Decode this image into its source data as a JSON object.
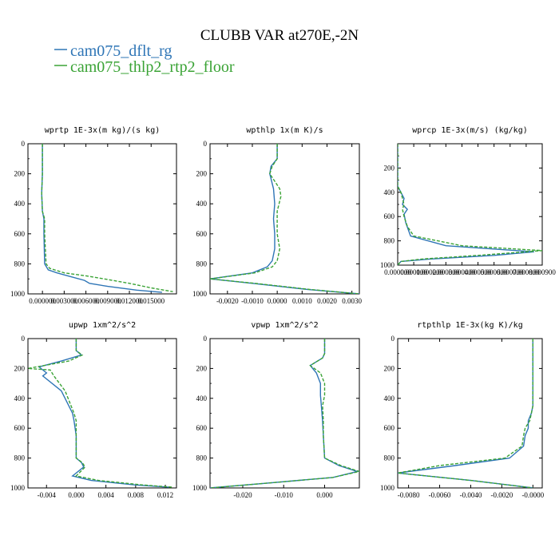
{
  "title": "CLUBB VAR at270E,-2N",
  "legend": [
    {
      "label": "cam075_dflt_rg",
      "color": "#2e75b6"
    },
    {
      "label": "cam075_thlp2_rtp2_floor",
      "color": "#3aa335"
    }
  ],
  "chart_data": [
    {
      "type": "line",
      "title": "wprtp  1E-3x(m kg)/(s kg)",
      "xlim": [
        -0.002,
        0.0185
      ],
      "ylim": [
        1000,
        0
      ],
      "xticks": [
        0.0,
        0.003,
        0.006,
        0.009,
        0.012,
        0.015
      ],
      "xtick_labels": [
        "0.000000",
        "0.003000",
        "0.006000",
        "0.009000",
        "0.012000",
        "0.015000"
      ],
      "yticks": [
        0,
        200,
        400,
        600,
        800,
        1000
      ],
      "series": [
        {
          "name": "cam075_dflt_rg",
          "x": [
            0.0,
            0.0,
            -0.0001,
            0.0,
            0.0002,
            0.0002,
            0.0003,
            0.0008,
            0.002,
            0.0035,
            0.0058,
            0.0065,
            0.009,
            0.013,
            0.0165
          ],
          "y": [
            0,
            200,
            330,
            450,
            500,
            600,
            800,
            840,
            860,
            880,
            910,
            930,
            950,
            975,
            990
          ]
        },
        {
          "name": "cam075_thlp2_rtp2_floor",
          "x": [
            0.0,
            0.0,
            -0.0001,
            0.0,
            0.0003,
            0.0003,
            0.0005,
            0.001,
            0.003,
            0.006,
            0.0085,
            0.012,
            0.015,
            0.018
          ],
          "y": [
            0,
            200,
            330,
            450,
            500,
            600,
            800,
            830,
            860,
            880,
            900,
            930,
            960,
            985
          ]
        }
      ]
    },
    {
      "type": "line",
      "title": "wpthlp  1x(m K)/s",
      "xlim": [
        -0.0027,
        0.0033
      ],
      "ylim": [
        1000,
        0
      ],
      "xticks": [
        -0.002,
        -0.001,
        0.0,
        0.001,
        0.002,
        0.003
      ],
      "xtick_labels": [
        "-0.0020",
        "-0.0010",
        "0.0000",
        "0.0010",
        "0.0020",
        "0.0030"
      ],
      "yticks": [
        0,
        200,
        400,
        600,
        800,
        1000
      ],
      "series": [
        {
          "name": "cam075_dflt_rg",
          "x": [
            0.0,
            0.0,
            -0.00025,
            -0.0003,
            -0.00015,
            -0.0001,
            -0.00015,
            -0.0001,
            -0.0001,
            -0.0002,
            -0.0004,
            -0.001,
            -0.0027,
            -0.001,
            0.0012,
            0.0033
          ],
          "y": [
            0,
            100,
            150,
            200,
            300,
            400,
            500,
            600,
            700,
            780,
            820,
            860,
            900,
            930,
            970,
            1000
          ]
        },
        {
          "name": "cam075_thlp2_rtp2_floor",
          "x": [
            0.0,
            0.0,
            -0.0002,
            -0.0003,
            0.0001,
            0.00015,
            0.0,
            0.0,
            0.0001,
            0.0,
            -0.0002,
            -0.0009,
            -0.0027,
            -0.0009,
            0.0013,
            0.0033
          ],
          "y": [
            0,
            100,
            150,
            200,
            300,
            350,
            450,
            600,
            700,
            780,
            820,
            860,
            900,
            930,
            970,
            1000
          ]
        }
      ]
    },
    {
      "type": "line",
      "title": "wprcp  1E-3x(m/s) (kg/kg)",
      "xlim": [
        0.0,
        0.0009
      ],
      "ylim": [
        1000,
        0
      ],
      "xticks": [
        0.0,
        0.0001,
        0.0002,
        0.0003,
        0.0004,
        0.0005,
        0.0006,
        0.0007,
        0.0008,
        0.0009
      ],
      "xtick_labels": [
        "0.000000",
        "0.000100",
        "0.000200",
        "0.000300",
        "0.000400",
        "0.000500",
        "0.000600",
        "0.000700",
        "0.000800",
        "0.000900"
      ],
      "yticks": [
        200,
        400,
        600,
        800,
        1000
      ],
      "series": [
        {
          "name": "cam075_dflt_rg",
          "x": [
            0.0,
            0.0,
            2e-05,
            4e-05,
            3e-05,
            6e-05,
            4e-05,
            5e-05,
            8e-05,
            0.0003,
            0.00085,
            0.0006,
            0.0002,
            2e-05,
            0.0
          ],
          "y": [
            0,
            350,
            400,
            450,
            500,
            540,
            580,
            650,
            760,
            840,
            890,
            920,
            950,
            970,
            1000
          ]
        },
        {
          "name": "cam075_thlp2_rtp2_floor",
          "x": [
            0.0,
            0.0,
            2e-05,
            3e-05,
            4e-05,
            3e-05,
            4e-05,
            6e-05,
            0.0001,
            0.0004,
            0.0009,
            0.0005,
            0.00015,
            2e-05,
            0.0
          ],
          "y": [
            0,
            350,
            400,
            450,
            500,
            540,
            600,
            680,
            760,
            840,
            880,
            920,
            950,
            970,
            1000
          ]
        }
      ]
    },
    {
      "type": "line",
      "title": "upwp  1xm^2/s^2",
      "xlim": [
        -0.0065,
        0.0135
      ],
      "ylim": [
        1000,
        0
      ],
      "xticks": [
        -0.004,
        0.0,
        0.004,
        0.008,
        0.012
      ],
      "xtick_labels": [
        "-0.004",
        "0.000",
        "0.004",
        "0.008",
        "0.012"
      ],
      "yticks": [
        0,
        200,
        400,
        600,
        800,
        1000
      ],
      "series": [
        {
          "name": "cam075_dflt_rg",
          "x": [
            0.0,
            0.0,
            0.0007,
            -0.002,
            -0.005,
            -0.004,
            -0.0045,
            -0.002,
            -0.0005,
            -0.0003,
            0.0,
            0.0,
            0.0007,
            0.001,
            -0.0005,
            0.002,
            0.008,
            0.0125
          ],
          "y": [
            0,
            80,
            110,
            150,
            190,
            230,
            250,
            350,
            500,
            550,
            650,
            800,
            830,
            860,
            920,
            950,
            980,
            995
          ]
        },
        {
          "name": "cam075_thlp2_rtp2_floor",
          "x": [
            0.0,
            0.0,
            0.0008,
            -0.001,
            -0.0065,
            -0.0035,
            -0.003,
            -0.0015,
            -0.0003,
            0.0,
            0.0,
            0.0,
            0.0008,
            0.0012,
            0.0,
            0.003,
            0.009,
            0.013
          ],
          "y": [
            0,
            80,
            110,
            150,
            200,
            210,
            250,
            350,
            500,
            550,
            650,
            800,
            830,
            860,
            920,
            950,
            980,
            995
          ]
        }
      ]
    },
    {
      "type": "line",
      "title": "vpwp  1xm^2/s^2",
      "xlim": [
        -0.028,
        0.0085
      ],
      "ylim": [
        1000,
        0
      ],
      "xticks": [
        -0.02,
        -0.01,
        0.0
      ],
      "xtick_labels": [
        "-0.020",
        "-0.010",
        "0.000"
      ],
      "yticks": [
        0,
        200,
        400,
        600,
        800,
        1000
      ],
      "series": [
        {
          "name": "cam075_dflt_rg",
          "x": [
            0.0,
            0.0,
            -0.0005,
            -0.0035,
            -0.002,
            -0.001,
            -0.001,
            -0.0008,
            -0.0005,
            -0.0003,
            0.0,
            0.0035,
            0.008,
            0.002,
            -0.015,
            -0.028
          ],
          "y": [
            0,
            100,
            130,
            180,
            230,
            300,
            380,
            450,
            550,
            650,
            800,
            850,
            890,
            930,
            970,
            1000
          ]
        },
        {
          "name": "cam075_thlp2_rtp2_floor",
          "x": [
            0.0,
            0.0,
            -0.0005,
            -0.0035,
            -0.001,
            0.0,
            0.0,
            -0.0005,
            -0.0003,
            -0.0003,
            0.0,
            0.004,
            0.0085,
            0.002,
            -0.015,
            -0.028
          ],
          "y": [
            0,
            100,
            130,
            180,
            230,
            300,
            380,
            450,
            550,
            650,
            800,
            850,
            890,
            930,
            970,
            1000
          ]
        }
      ]
    },
    {
      "type": "line",
      "title": "rtpthlp  1E-3x(kg K)/kg",
      "xlim": [
        -0.0087,
        0.0006
      ],
      "ylim": [
        1000,
        0
      ],
      "xticks": [
        -0.008,
        -0.006,
        -0.004,
        -0.002,
        0.0
      ],
      "xtick_labels": [
        "-0.0080",
        "-0.0060",
        "-0.0040",
        "-0.0020",
        "-0.0000"
      ],
      "yticks": [
        0,
        200,
        400,
        600,
        800,
        1000
      ],
      "series": [
        {
          "name": "cam075_dflt_rg",
          "x": [
            0.0,
            0.0,
            -0.0001,
            -0.0003,
            -0.0003,
            -0.0005,
            -0.0006,
            -0.0015,
            -0.005,
            -0.0087,
            -0.004,
            0.0
          ],
          "y": [
            0,
            450,
            500,
            550,
            600,
            650,
            720,
            800,
            850,
            900,
            950,
            1000
          ]
        },
        {
          "name": "cam075_thlp2_rtp2_floor",
          "x": [
            0.0,
            0.0,
            -0.0001,
            -0.0002,
            -0.0005,
            -0.0006,
            -0.0007,
            -0.0018,
            -0.006,
            -0.0087,
            -0.004,
            0.0
          ],
          "y": [
            0,
            450,
            500,
            550,
            600,
            650,
            720,
            800,
            850,
            900,
            950,
            1000
          ]
        }
      ]
    }
  ]
}
